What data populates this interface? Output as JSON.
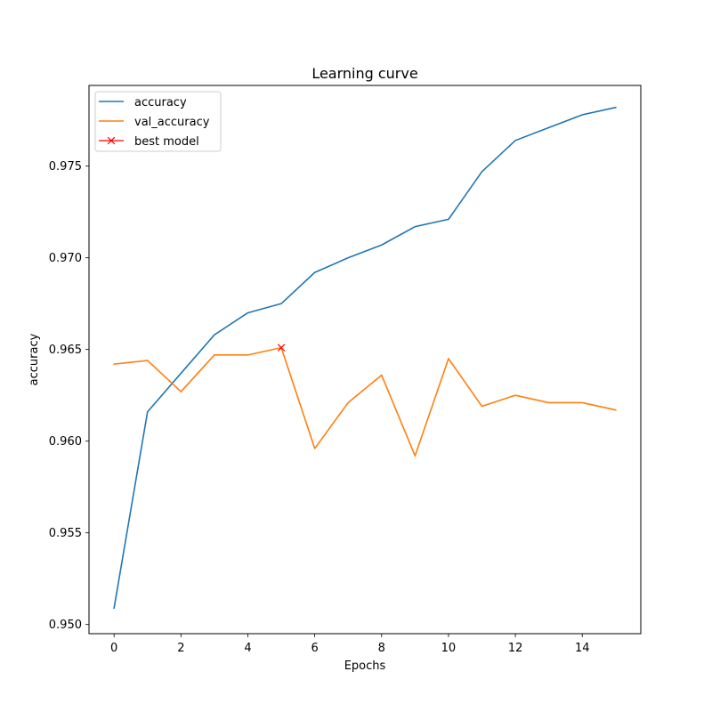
{
  "chart_data": {
    "type": "line",
    "title": "Learning curve",
    "xlabel": "Epochs",
    "ylabel": "accuracy",
    "xlim": [
      -0.75,
      15.75
    ],
    "ylim": [
      0.9495,
      0.9794
    ],
    "xticks": [
      0,
      2,
      4,
      6,
      8,
      10,
      12,
      14
    ],
    "xtick_labels": [
      "0",
      "2",
      "4",
      "6",
      "8",
      "10",
      "12",
      "14"
    ],
    "yticks": [
      0.95,
      0.955,
      0.96,
      0.965,
      0.97,
      0.975
    ],
    "ytick_labels": [
      "0.950",
      "0.955",
      "0.960",
      "0.965",
      "0.970",
      "0.975"
    ],
    "grid": false,
    "legend_position": "top-left",
    "x": [
      0,
      1,
      2,
      3,
      4,
      5,
      6,
      7,
      8,
      9,
      10,
      11,
      12,
      13,
      14,
      15
    ],
    "series": [
      {
        "name": "accuracy",
        "color": "#1f77b4",
        "values": [
          0.9509,
          0.9616,
          0.9637,
          0.9658,
          0.967,
          0.9675,
          0.9692,
          0.97,
          0.9707,
          0.9717,
          0.9721,
          0.9747,
          0.9764,
          0.9771,
          0.9778,
          0.9782
        ]
      },
      {
        "name": "val_accuracy",
        "color": "#ff7f0e",
        "values": [
          0.9642,
          0.9644,
          0.9627,
          0.9647,
          0.9647,
          0.9651,
          0.9596,
          0.9621,
          0.9636,
          0.9592,
          0.9645,
          0.9619,
          0.9625,
          0.9621,
          0.9621,
          0.9617
        ]
      }
    ],
    "markers": [
      {
        "name": "best model",
        "color": "#ff0000",
        "marker": "x",
        "x": 5,
        "y": 0.9651
      }
    ]
  }
}
